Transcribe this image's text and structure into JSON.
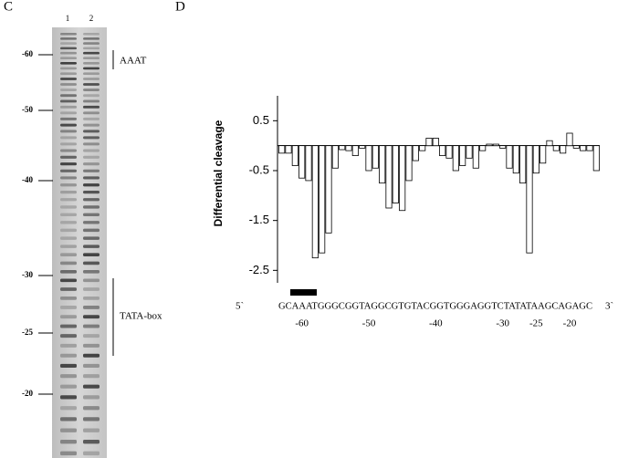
{
  "panel_labels": [
    "C",
    "D"
  ],
  "gel": {
    "lanes": [
      "1",
      "2"
    ],
    "ticks": [
      -60,
      -50,
      -40,
      -30,
      -25,
      -20
    ],
    "annotations": [
      "AAAT",
      "TATA-box"
    ]
  },
  "chart_data": {
    "type": "bar",
    "ylabel": "Differential cleavage",
    "x": [
      -63,
      -62,
      -61,
      -60,
      -59,
      -58,
      -57,
      -56,
      -55,
      -54,
      -53,
      -52,
      -51,
      -50,
      -49,
      -48,
      -47,
      -46,
      -45,
      -44,
      -43,
      -42,
      -41,
      -40,
      -39,
      -38,
      -37,
      -36,
      -35,
      -34,
      -33,
      -32,
      -31,
      -30,
      -29,
      -28,
      -27,
      -26,
      -25,
      -24,
      -23,
      -22,
      -21,
      -20,
      -19,
      -18,
      -17,
      -16
    ],
    "values": [
      -0.15,
      -0.15,
      -0.4,
      -0.65,
      -0.7,
      -2.25,
      -2.15,
      -1.75,
      -0.45,
      -0.08,
      -0.1,
      -0.2,
      -0.05,
      -0.5,
      -0.45,
      -0.75,
      -1.25,
      -1.15,
      -1.3,
      -0.7,
      -0.3,
      -0.1,
      0.15,
      0.15,
      -0.2,
      -0.25,
      -0.5,
      -0.4,
      -0.25,
      -0.45,
      -0.1,
      0.03,
      0.03,
      -0.05,
      -0.45,
      -0.55,
      -0.75,
      -2.15,
      -0.55,
      -0.35,
      0.1,
      -0.1,
      -0.15,
      0.25,
      -0.05,
      -0.1,
      -0.1,
      -0.5
    ],
    "color": "#ffffff",
    "xlim": [
      -63.5,
      -15.5
    ],
    "xticks": [
      -60,
      -50,
      -40,
      -30,
      -25,
      -20
    ],
    "ylim": [
      -2.75,
      1.0
    ],
    "yticks": [
      0.5,
      -0.5,
      -1.5,
      -2.5
    ],
    "sequence": "GCAAATGGGCGGTAGGCGTGTACGGTGGGAGGTCTATATAAGCAGAGC",
    "sequence_ends": [
      "5`",
      "3`"
    ]
  }
}
